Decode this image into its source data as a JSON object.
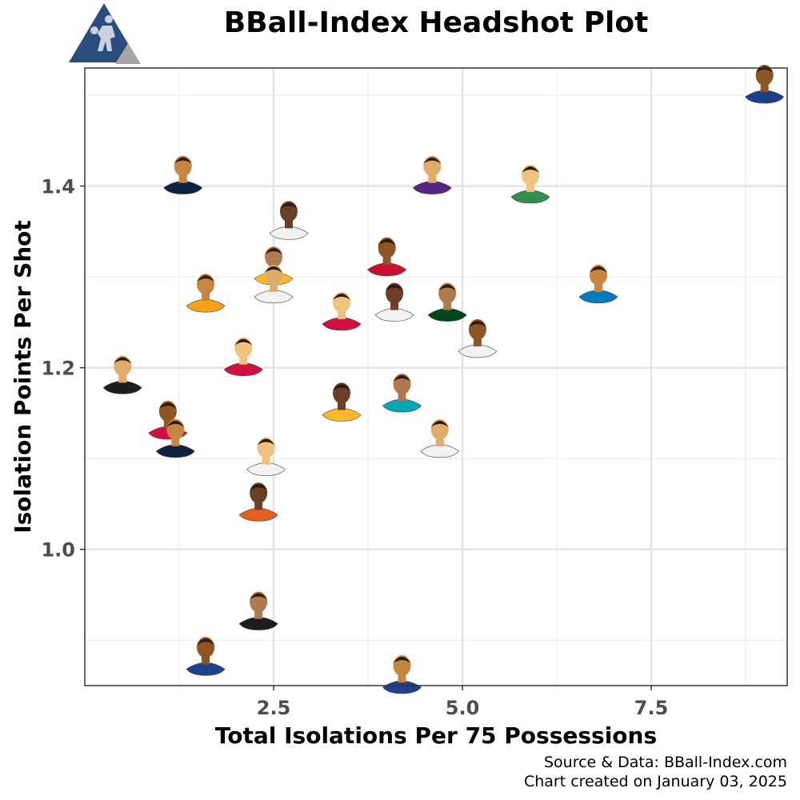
{
  "header": {
    "title": "BBall-Index Headshot Plot",
    "logo_icon": "basketball-player-triangle-logo",
    "logo_colors": {
      "primary": "#2b4c7e",
      "secondary": "#a6a6a6"
    }
  },
  "caption": {
    "line1": "Source & Data: BBall-Index.com",
    "line2": "Chart created on January 03, 2025"
  },
  "chart_data": {
    "type": "scatter",
    "title": "BBall-Index Headshot Plot",
    "xlabel": "Total Isolations Per 75 Possessions",
    "ylabel": "Isolation Points Per Shot",
    "xlim": [
      0,
      9.3
    ],
    "ylim": [
      0.85,
      1.53
    ],
    "x_ticks": [
      {
        "value": 2.5,
        "label": "2.5"
      },
      {
        "value": 5.0,
        "label": "5.0"
      },
      {
        "value": 7.5,
        "label": "7.5"
      }
    ],
    "y_ticks": [
      {
        "value": 1.0,
        "label": "1.0"
      },
      {
        "value": 1.2,
        "label": "1.2"
      },
      {
        "value": 1.4,
        "label": "1.4"
      }
    ],
    "grid": true,
    "marker": "player-headshot",
    "points": [
      {
        "x": 9.0,
        "y": 1.5,
        "jersey": "#1d3f8a"
      },
      {
        "x": 1.3,
        "y": 1.4,
        "jersey": "#0c2340"
      },
      {
        "x": 4.6,
        "y": 1.4,
        "jersey": "#552583"
      },
      {
        "x": 5.9,
        "y": 1.39,
        "jersey": "#2f8f4e"
      },
      {
        "x": 2.7,
        "y": 1.35,
        "jersey": "#f2f2f2"
      },
      {
        "x": 2.5,
        "y": 1.3,
        "jersey": "#fdb927"
      },
      {
        "x": 4.0,
        "y": 1.31,
        "jersey": "#c9102f"
      },
      {
        "x": 1.6,
        "y": 1.27,
        "jersey": "#f9a01b"
      },
      {
        "x": 2.5,
        "y": 1.28,
        "jersey": "#f2f2f2"
      },
      {
        "x": 3.4,
        "y": 1.25,
        "jersey": "#ce1141"
      },
      {
        "x": 4.1,
        "y": 1.26,
        "jersey": "#f2f2f2"
      },
      {
        "x": 4.8,
        "y": 1.26,
        "jersey": "#00471b"
      },
      {
        "x": 5.2,
        "y": 1.22,
        "jersey": "#f2f2f2"
      },
      {
        "x": 6.8,
        "y": 1.28,
        "jersey": "#007ac1"
      },
      {
        "x": 0.5,
        "y": 1.18,
        "jersey": "#1d1d1d"
      },
      {
        "x": 2.1,
        "y": 1.2,
        "jersey": "#ce1141"
      },
      {
        "x": 3.4,
        "y": 1.15,
        "jersey": "#fdb927"
      },
      {
        "x": 4.2,
        "y": 1.16,
        "jersey": "#00a7b5"
      },
      {
        "x": 1.1,
        "y": 1.13,
        "jersey": "#ce1141"
      },
      {
        "x": 1.2,
        "y": 1.11,
        "jersey": "#0e2240"
      },
      {
        "x": 4.7,
        "y": 1.11,
        "jersey": "#f2f2f2"
      },
      {
        "x": 2.4,
        "y": 1.09,
        "jersey": "#f2f2f2"
      },
      {
        "x": 2.3,
        "y": 1.04,
        "jersey": "#e56020"
      },
      {
        "x": 2.3,
        "y": 0.92,
        "jersey": "#1d1d1d"
      },
      {
        "x": 1.6,
        "y": 0.87,
        "jersey": "#1d428a"
      },
      {
        "x": 4.2,
        "y": 0.85,
        "jersey": "#1d428a"
      }
    ]
  }
}
